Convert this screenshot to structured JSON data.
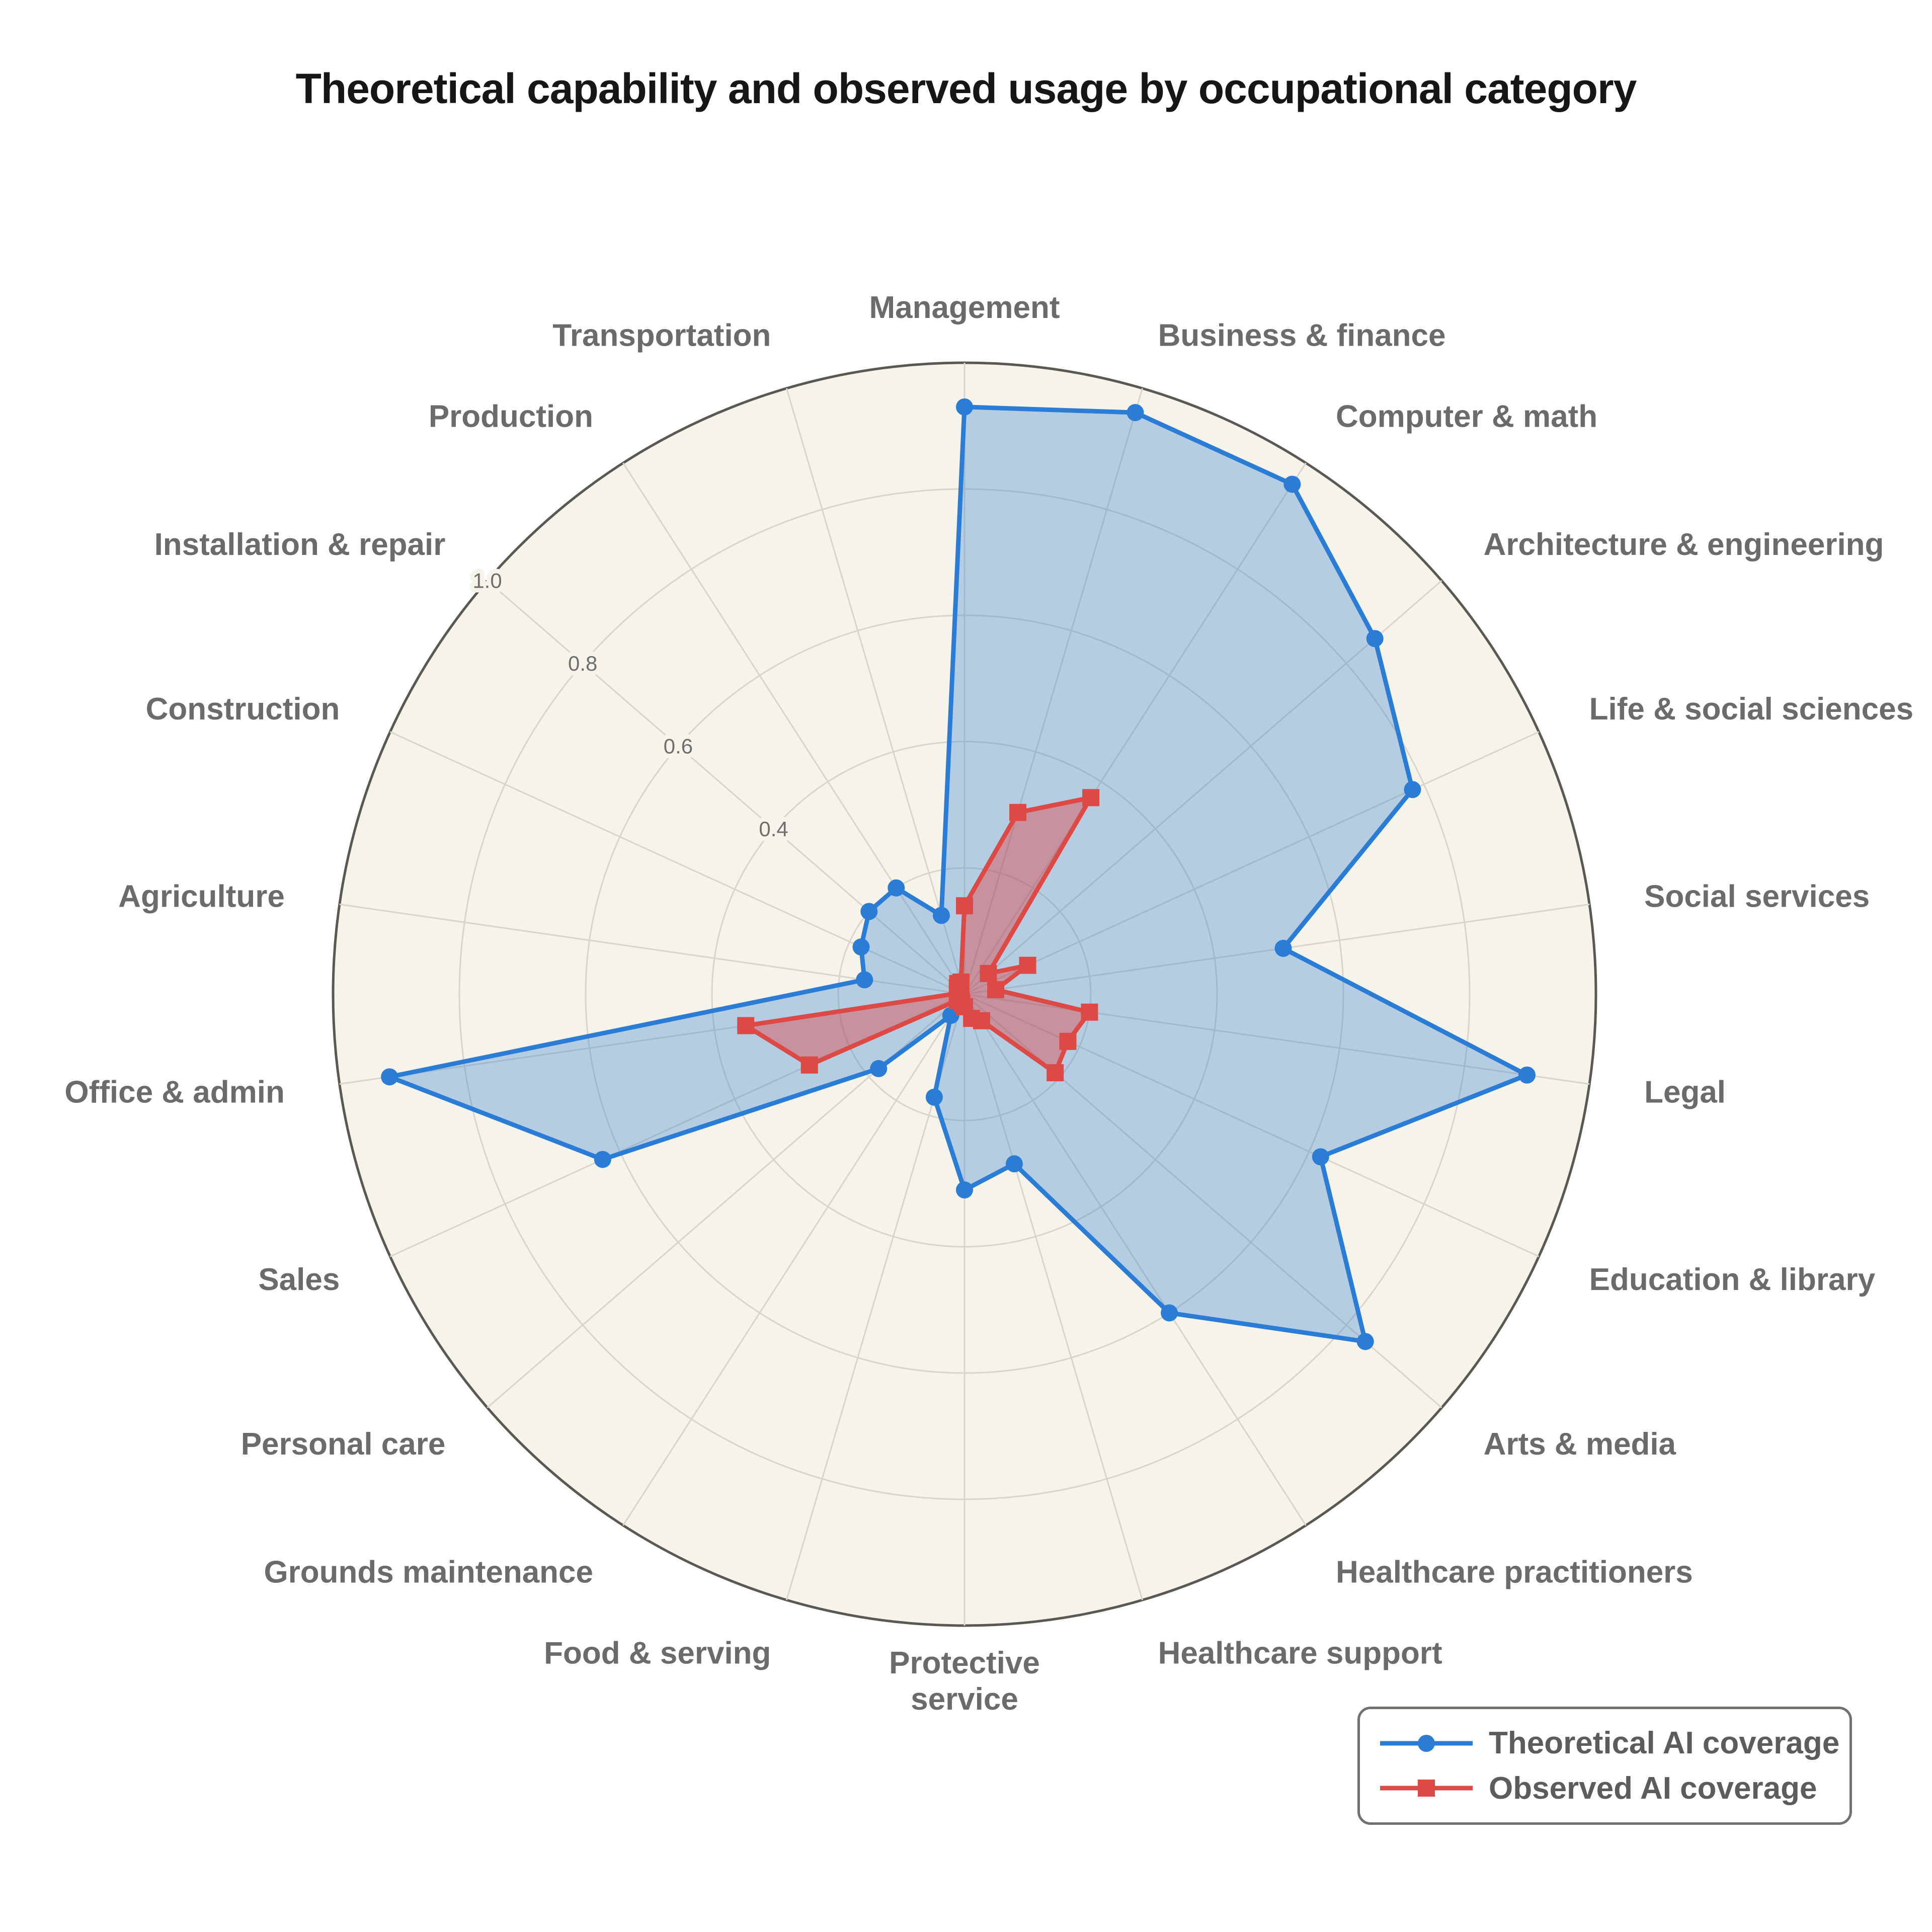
{
  "chart_data": {
    "type": "radar",
    "title": "Theoretical capability and observed usage by occupational category",
    "categories": [
      "Management",
      "Business & finance",
      "Computer & math",
      "Architecture & engineering",
      "Life & social sciences",
      "Social services",
      "Legal",
      "Education & library",
      "Arts & media",
      "Healthcare practitioners",
      "Healthcare support",
      "Protective service",
      "Food & serving",
      "Grounds maintenance",
      "Personal care",
      "Sales",
      "Office & admin",
      "Agriculture",
      "Construction",
      "Installation & repair",
      "Production",
      "Transportation"
    ],
    "label_wrap": {
      "Protective service": [
        "Protective",
        "service"
      ]
    },
    "series": [
      {
        "name": "Theoretical AI coverage",
        "marker": "circle",
        "color": "#2a7cd5",
        "fill_opacity": 0.32,
        "values": [
          0.93,
          0.96,
          0.96,
          0.86,
          0.78,
          0.51,
          0.9,
          0.62,
          0.84,
          0.6,
          0.28,
          0.31,
          0.17,
          0.04,
          0.18,
          0.63,
          0.92,
          0.16,
          0.18,
          0.2,
          0.2,
          0.13
        ]
      },
      {
        "name": "Observed AI coverage",
        "marker": "square",
        "color": "#dd4a46",
        "fill_opacity": 0.45,
        "values": [
          0.14,
          0.3,
          0.37,
          0.05,
          0.11,
          0.05,
          0.2,
          0.18,
          0.19,
          0.05,
          0.04,
          0.02,
          0.015,
          0.01,
          0.015,
          0.27,
          0.35,
          0.01,
          0.01,
          0.015,
          0.02,
          0.02
        ]
      }
    ],
    "r_axis": {
      "max": 1.0,
      "tick_angle_index": 19,
      "ticks": [
        {
          "label": "0.4",
          "value": 0.4
        },
        {
          "label": "0.6",
          "value": 0.6
        },
        {
          "label": "0.8",
          "value": 0.8
        },
        {
          "label": "1.0",
          "value": 1.0
        }
      ]
    },
    "grid_rings": [
      0.2,
      0.4,
      0.6,
      0.8
    ],
    "legend_position": "bottom-right",
    "style": {
      "plot_bg": "#f6f3eb",
      "page_bg": "#ffffff",
      "grid": "#d9d5ca",
      "outline": "#5a5853",
      "category_label_color": "#6b6b6b",
      "tick_label_color": "#6e6e6e",
      "title_color": "#161616",
      "legend_text_color": "#5c5c5c",
      "legend_border_color": "#72716d"
    }
  }
}
